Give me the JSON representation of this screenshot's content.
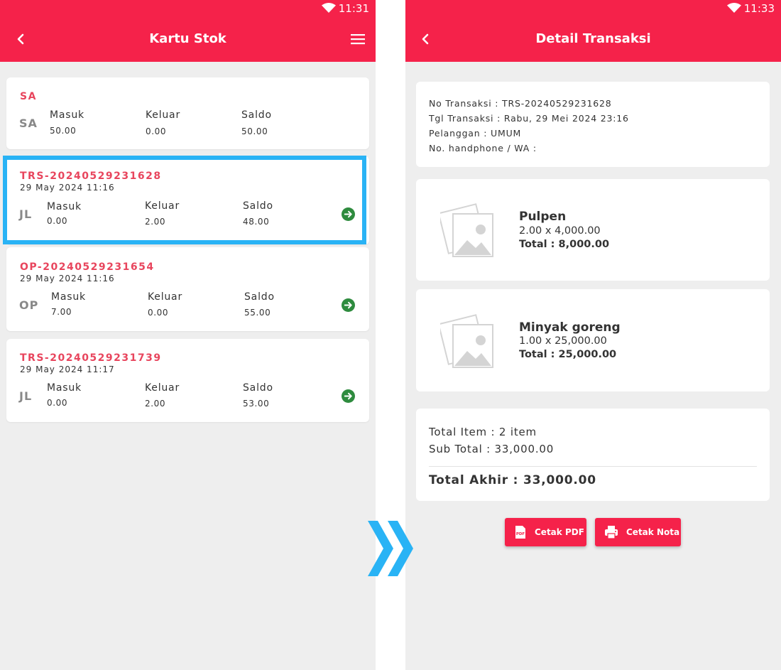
{
  "left_screen": {
    "status_time": "11:31",
    "title": "Kartu Stok",
    "cards": [
      {
        "code": "SA",
        "date": "",
        "type": "SA",
        "masuk_label": "Masuk",
        "masuk": "50.00",
        "keluar_label": "Keluar",
        "keluar": "0.00",
        "saldo_label": "Saldo",
        "saldo": "50.00"
      },
      {
        "code": "TRS-20240529231628",
        "date": "29 May 2024 11:16",
        "type": "JL",
        "masuk_label": "Masuk",
        "masuk": "0.00",
        "keluar_label": "Keluar",
        "keluar": "2.00",
        "saldo_label": "Saldo",
        "saldo": "48.00"
      },
      {
        "code": "OP-20240529231654",
        "date": "29 May 2024 11:16",
        "type": "OP",
        "masuk_label": "Masuk",
        "masuk": "7.00",
        "keluar_label": "Keluar",
        "keluar": "0.00",
        "saldo_label": "Saldo",
        "saldo": "55.00"
      },
      {
        "code": "TRS-20240529231739",
        "date": "29 May 2024 11:17",
        "type": "JL",
        "masuk_label": "Masuk",
        "masuk": "0.00",
        "keluar_label": "Keluar",
        "keluar": "2.00",
        "saldo_label": "Saldo",
        "saldo": "53.00"
      }
    ]
  },
  "right_screen": {
    "status_time": "11:33",
    "title": "Detail Transaksi",
    "info": {
      "no_transaksi": "No Transaksi : TRS-20240529231628",
      "tgl_transaksi": "Tgl Transaksi : Rabu, 29 Mei 2024 23:16",
      "pelanggan": "Pelanggan : UMUM",
      "handphone": "No. handphone / WA :"
    },
    "items": [
      {
        "name": "Pulpen",
        "qty_price": "2.00 x 4,000.00",
        "total": "Total : 8,000.00"
      },
      {
        "name": "Minyak goreng",
        "qty_price": "1.00 x 25,000.00",
        "total": "Total : 25,000.00"
      }
    ],
    "summary": {
      "total_item": "Total Item : 2 item",
      "sub_total": "Sub Total : 33,000.00",
      "total_akhir": "Total Akhir : 33,000.00"
    },
    "buttons": {
      "pdf_label": "Cetak PDF",
      "pdf_icon_text": "PDF",
      "nota_label": "Cetak Nota"
    }
  },
  "colors": {
    "brand": "#f5224a",
    "code_text": "#e8455d",
    "highlight": "#29b3f5",
    "arrow": "#2e8b3e",
    "background": "#eeeeee"
  },
  "icons": [
    "wifi-icon",
    "back-icon",
    "menu-icon",
    "arrow-right-circle-icon",
    "image-placeholder-icon",
    "pdf-icon",
    "printer-icon",
    "double-chevron-icon"
  ]
}
